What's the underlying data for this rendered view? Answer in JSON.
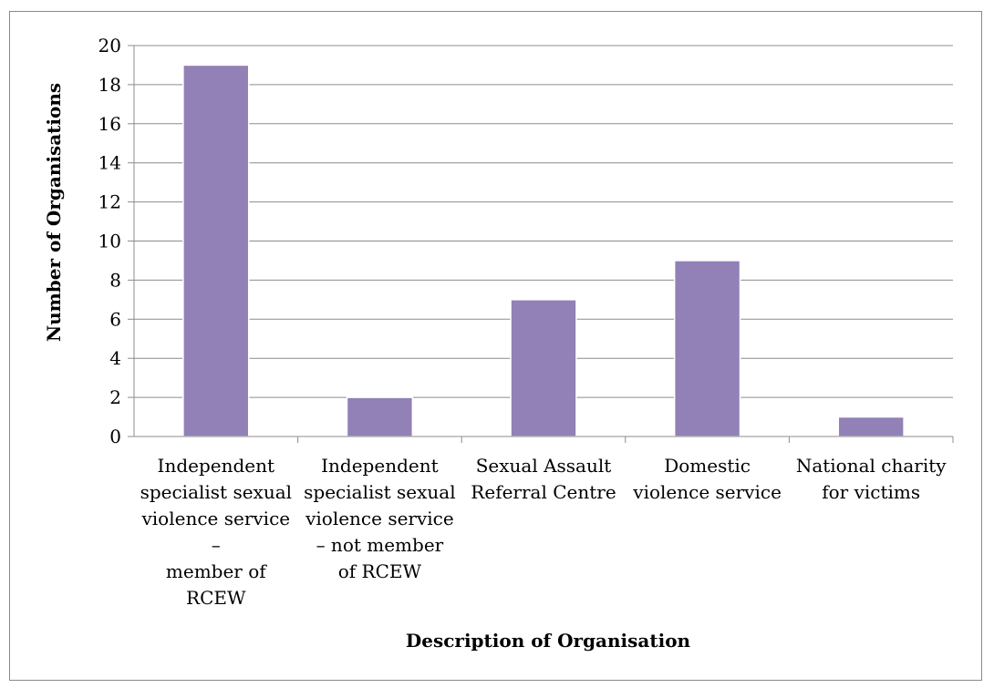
{
  "chart_data": {
    "type": "bar",
    "title": "",
    "xlabel": "Description of Organisation",
    "ylabel": "Number of Organisations",
    "categories": [
      [
        "Independent",
        "specialist sexual",
        "violence service",
        "–",
        "member of",
        "RCEW"
      ],
      [
        "Independent",
        "specialist sexual",
        "violence service",
        "– not member",
        "of RCEW"
      ],
      [
        "Sexual Assault",
        "Referral Centre"
      ],
      [
        "Domestic",
        "violence service"
      ],
      [
        "National charity",
        "for victims"
      ]
    ],
    "values": [
      19,
      2,
      7,
      9,
      1
    ],
    "ylim": [
      0,
      20
    ],
    "yticks": [
      0,
      2,
      4,
      6,
      8,
      10,
      12,
      14,
      16,
      18,
      20
    ],
    "grid": true,
    "bar_color": "#9181b6"
  }
}
